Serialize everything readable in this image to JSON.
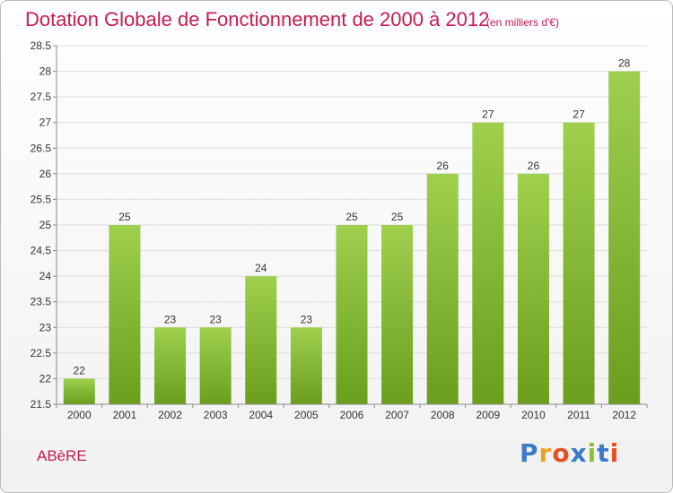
{
  "header": {
    "title": "Dotation Globale de Fonctionnement de 2000 à 2012",
    "subtitle": "(en milliers d'€)"
  },
  "commune": "ABèRE",
  "logo": {
    "text": "Proxiti",
    "letter_colors": [
      "#3a7cc9",
      "#f0a020",
      "#e84f1e",
      "#3a7cc9",
      "#8fc034",
      "#3a7cc9",
      "#e84f1e"
    ]
  },
  "colors": {
    "title": "#c71c52",
    "bar_light": "#9ed04e",
    "bar_dark": "#6a9e1c",
    "grid": "#dcdcdc",
    "axis_text": "#333333"
  },
  "chart_data": {
    "type": "bar",
    "title": "Dotation Globale de Fonctionnement de 2000 à 2012",
    "subtitle": "(en milliers d'€)",
    "categories": [
      "2000",
      "2001",
      "2002",
      "2003",
      "2004",
      "2005",
      "2006",
      "2007",
      "2008",
      "2009",
      "2010",
      "2011",
      "2012"
    ],
    "values": [
      22,
      25,
      23,
      23,
      24,
      23,
      25,
      25,
      26,
      27,
      26,
      27,
      28
    ],
    "ylim": [
      21.5,
      28.5
    ],
    "yticks": [
      21.5,
      22,
      22.5,
      23,
      23.5,
      24,
      24.5,
      25,
      25.5,
      26,
      26.5,
      27,
      27.5,
      28,
      28.5
    ],
    "grid": true,
    "xlabel": "",
    "ylabel": ""
  }
}
